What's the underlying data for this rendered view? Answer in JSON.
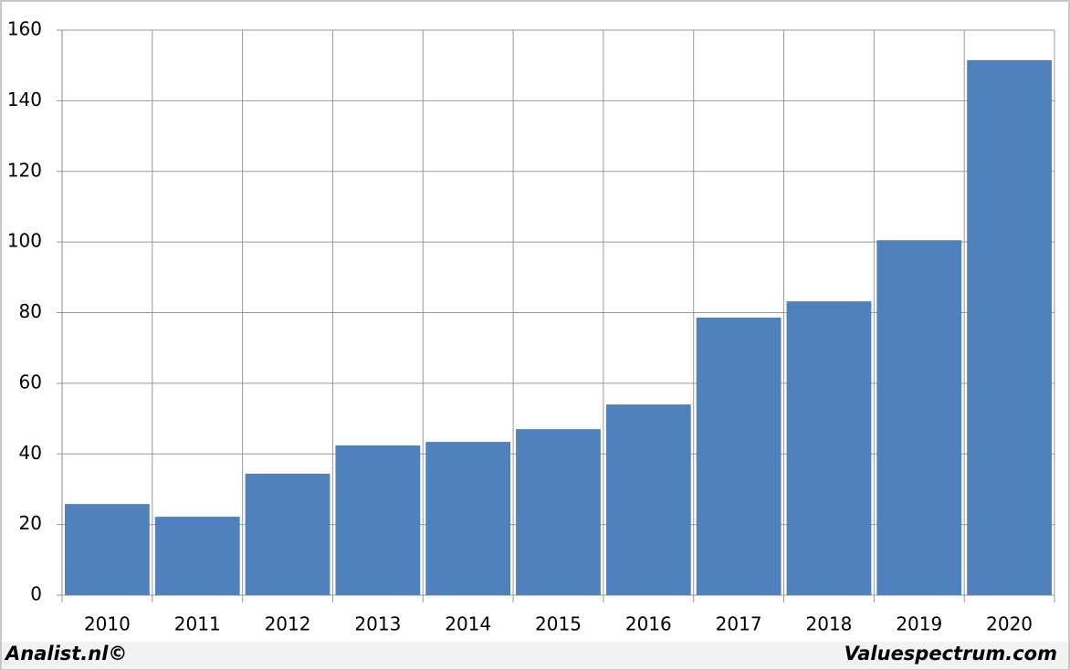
{
  "chart_data": {
    "type": "bar",
    "categories": [
      "2010",
      "2011",
      "2012",
      "2013",
      "2014",
      "2015",
      "2016",
      "2017",
      "2018",
      "2019",
      "2020"
    ],
    "values": [
      25.8,
      22.2,
      34.4,
      42.4,
      43.4,
      47.0,
      54.0,
      78.6,
      83.2,
      100.5,
      151.5
    ],
    "color": "#4f81bd",
    "ylim": [
      0,
      160
    ],
    "yticks": [
      0,
      20,
      40,
      60,
      80,
      100,
      120,
      140,
      160
    ],
    "grid": true,
    "source_left": "Analist.nl©",
    "source_right": "Valuespectrum.com"
  }
}
